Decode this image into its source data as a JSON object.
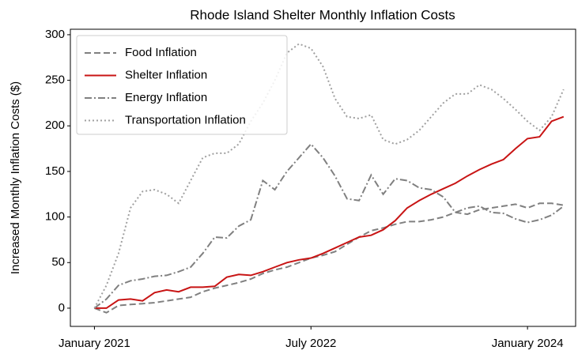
{
  "chart_data": {
    "type": "line",
    "title": "Rhode Island Shelter Monthly Inflation Costs",
    "y_label": "Increased Monthly Inflation Costs ($)",
    "x": [
      "2021-01",
      "2021-02",
      "2021-03",
      "2021-04",
      "2021-05",
      "2021-06",
      "2021-07",
      "2021-08",
      "2021-09",
      "2021-10",
      "2021-11",
      "2021-12",
      "2022-01",
      "2022-02",
      "2022-03",
      "2022-04",
      "2022-05",
      "2022-06",
      "2022-07",
      "2022-08",
      "2022-09",
      "2022-10",
      "2022-11",
      "2022-12",
      "2023-01",
      "2023-02",
      "2023-03",
      "2023-04",
      "2023-05",
      "2023-06",
      "2023-07",
      "2023-08",
      "2023-09",
      "2023-10",
      "2023-11",
      "2023-12",
      "2024-01",
      "2024-02",
      "2024-03",
      "2024-04"
    ],
    "series": [
      {
        "name": "Food Inflation",
        "color": "#808080",
        "linestyle": "dashed",
        "values": [
          0,
          -5,
          3,
          4,
          5,
          6,
          8,
          10,
          12,
          18,
          22,
          25,
          28,
          32,
          38,
          42,
          45,
          50,
          55,
          58,
          62,
          70,
          78,
          85,
          88,
          92,
          95,
          95,
          97,
          100,
          105,
          103,
          108,
          110,
          112,
          114,
          110,
          115,
          115,
          113
        ]
      },
      {
        "name": "Shelter Inflation",
        "color": "#c81414",
        "linestyle": "solid",
        "values": [
          0,
          0,
          9,
          10,
          8,
          17,
          20,
          18,
          23,
          23,
          24,
          34,
          37,
          36,
          40,
          45,
          50,
          53,
          55,
          60,
          66,
          72,
          78,
          80,
          86,
          96,
          110,
          118,
          125,
          131,
          137,
          145,
          152,
          158,
          163,
          175,
          186,
          188,
          205,
          210
        ]
      },
      {
        "name": "Energy Inflation",
        "color": "#808080",
        "linestyle": "dashdot",
        "values": [
          0,
          10,
          25,
          30,
          32,
          35,
          36,
          40,
          45,
          60,
          78,
          77,
          90,
          97,
          140,
          130,
          150,
          165,
          180,
          165,
          145,
          120,
          118,
          146,
          125,
          142,
          140,
          132,
          130,
          122,
          105,
          110,
          112,
          105,
          104,
          98,
          94,
          97,
          102,
          112
        ]
      },
      {
        "name": "Transportation Inflation",
        "color": "#a0a0a0",
        "linestyle": "dotted",
        "values": [
          0,
          25,
          60,
          110,
          128,
          130,
          125,
          115,
          140,
          165,
          170,
          170,
          180,
          205,
          225,
          250,
          280,
          290,
          285,
          265,
          230,
          210,
          208,
          212,
          185,
          180,
          185,
          195,
          210,
          225,
          235,
          235,
          245,
          240,
          230,
          218,
          205,
          195,
          210,
          240
        ]
      }
    ],
    "xlim": [
      "2020-11",
      "2024-05"
    ],
    "xticks": [
      {
        "value": "2021-01",
        "label": "January 2021"
      },
      {
        "value": "2022-07",
        "label": "July 2022"
      },
      {
        "value": "2024-01",
        "label": "January 2024"
      }
    ],
    "ylim": [
      -20,
      306
    ],
    "yticks": [
      0,
      50,
      100,
      150,
      200,
      250,
      300
    ],
    "legend": "upper left"
  }
}
